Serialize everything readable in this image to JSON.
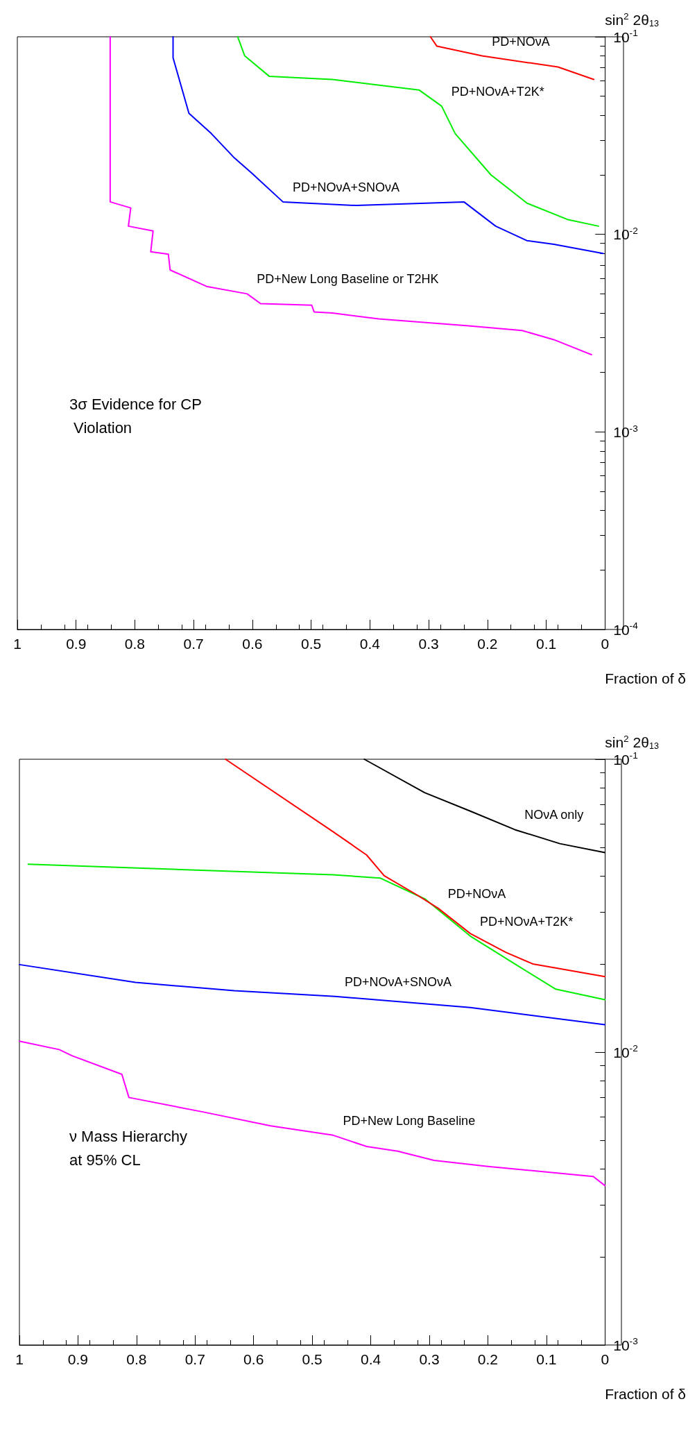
{
  "chart_data": [
    {
      "type": "line",
      "title": "3σ Evidence for CP Violation",
      "xlabel": "Fraction of δ",
      "ylabel": "sin$^{2}$ 2θ$_{13}$",
      "log": "y",
      "marker": "none",
      "line_style": "solid",
      "grid": false,
      "ylim": [
        0.0001,
        0.1
      ],
      "yticks": [
        {
          "value": 0.0001,
          "label": "10$^{-4}$"
        },
        {
          "value": 0.001,
          "label": "10$^{-3}$"
        },
        {
          "value": 0.01,
          "label": "10$^{-2}$"
        },
        {
          "value": 0.1,
          "label": "10$^{-1}$"
        }
      ],
      "xlim": [
        1,
        0
      ],
      "xticks": [
        0,
        0.1,
        0.2,
        0.3,
        0.4,
        0.5,
        0.6,
        0.7,
        0.8,
        0.9,
        1
      ],
      "series": [
        {
          "name": "PD+New Long Baseline or T2HK",
          "color": "#ff00ff",
          "values": [
            0.1,
            0.0146,
            0.0136,
            0.011,
            0.0104,
            0.00816,
            0.00794,
            0.0066,
            0.00545,
            0.005,
            0.00446,
            0.00438,
            0.00405,
            0.004,
            0.00373,
            0.00344,
            0.00326,
            0.00293,
            0.00246
          ],
          "x": [
            0.842,
            0.842,
            0.807,
            0.811,
            0.769,
            0.773,
            0.743,
            0.74,
            0.678,
            0.609,
            0.586,
            0.499,
            0.495,
            0.464,
            0.385,
            0.232,
            0.141,
            0.087,
            0.023
          ]
        },
        {
          "name": "PD+NOνA+SNOνA",
          "color": "#0000ff",
          "values": [
            0.1,
            0.0783,
            0.041,
            0.0324,
            0.0246,
            0.0204,
            0.0146,
            0.014,
            0.0146,
            0.011,
            0.0093,
            0.0089,
            0.008
          ],
          "x": [
            0.735,
            0.735,
            0.708,
            0.67,
            0.632,
            0.601,
            0.548,
            0.423,
            0.24,
            0.186,
            0.133,
            0.087,
            0.003
          ]
        },
        {
          "name": "PD+NOνA+T2K*",
          "color": "#00ee00",
          "values": [
            0.1,
            0.08,
            0.063,
            0.0608,
            0.0537,
            0.0446,
            0.0324,
            0.02,
            0.0144,
            0.0119,
            0.011
          ],
          "x": [
            0.625,
            0.613,
            0.571,
            0.464,
            0.316,
            0.278,
            0.255,
            0.194,
            0.133,
            0.064,
            0.011
          ]
        },
        {
          "name": "PD+NOνA",
          "color": "#ff0000",
          "values": [
            0.1,
            0.0896,
            0.08,
            0.0703,
            0.0608
          ],
          "x": [
            0.297,
            0.286,
            0.209,
            0.08,
            0.019
          ]
        }
      ]
    },
    {
      "type": "line",
      "title": "ν Mass Hierarchy at 95% CL",
      "xlabel": "Fraction of δ",
      "ylabel": "sin$^{2}$ 2θ$_{13}$",
      "log": "y",
      "marker": "none",
      "line_style": "solid",
      "grid": false,
      "ylim": [
        0.001,
        0.1
      ],
      "yticks": [
        {
          "value": 0.001,
          "label": "10$^{-3}$"
        },
        {
          "value": 0.01,
          "label": "10$^{-2}$"
        },
        {
          "value": 0.1,
          "label": "10$^{-1}$"
        }
      ],
      "xlim": [
        1,
        0
      ],
      "xticks": [
        0,
        0.1,
        0.2,
        0.3,
        0.4,
        0.5,
        0.6,
        0.7,
        0.8,
        0.9,
        1
      ],
      "series": [
        {
          "name": "PD+New Long Baseline",
          "color": "#ff00ff",
          "values": [
            0.0109,
            0.0102,
            0.0097,
            0.0084,
            0.007,
            0.00625,
            0.0056,
            0.0052,
            0.00476,
            0.00459,
            0.00427,
            0.00407,
            0.00376,
            0.0035
          ],
          "x": [
            1,
            0.932,
            0.909,
            0.825,
            0.813,
            0.687,
            0.571,
            0.464,
            0.407,
            0.354,
            0.292,
            0.2,
            0.02,
            0
          ]
        },
        {
          "name": "PD+NOνA+SNOνA",
          "color": "#0000ff",
          "values": [
            0.0199,
            0.0173,
            0.0162,
            0.0155,
            0.0142,
            0.0124
          ],
          "x": [
            1,
            0.802,
            0.633,
            0.461,
            0.23,
            0
          ]
        },
        {
          "name": "PD+NOνA+T2K*",
          "color": "#00ee00",
          "values": [
            0.0438,
            0.0403,
            0.0393,
            0.0333,
            0.0249,
            0.02,
            0.0164,
            0.0151
          ],
          "x": [
            0.985,
            0.464,
            0.384,
            0.307,
            0.23,
            0.154,
            0.084,
            0
          ]
        },
        {
          "name": "PD+NOνA",
          "color": "#ff0000",
          "values": [
            0.1,
            0.0565,
            0.0471,
            0.04,
            0.0346,
            0.031,
            0.0254,
            0.0219,
            0.02,
            0.0181
          ],
          "x": [
            0.648,
            0.464,
            0.407,
            0.377,
            0.323,
            0.285,
            0.23,
            0.169,
            0.123,
            0
          ]
        },
        {
          "name": "NOνA only",
          "color": "#000000",
          "values": [
            0.1,
            0.0769,
            0.0665,
            0.0575,
            0.0515,
            0.048
          ],
          "x": [
            0.411,
            0.308,
            0.23,
            0.154,
            0.077,
            0
          ]
        }
      ]
    }
  ]
}
